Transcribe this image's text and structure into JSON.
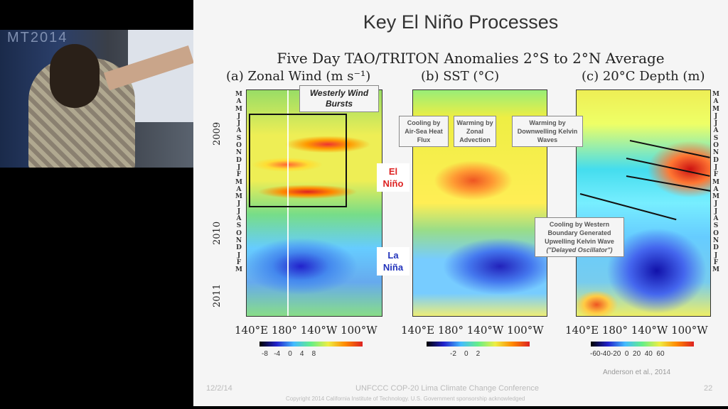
{
  "video": {
    "logo_fragment": "MT2014"
  },
  "slide": {
    "title": "Key El Niño Processes",
    "subtitle": "Five Day TAO/TRITON Anomalies  2°S to 2°N Average",
    "panels": [
      {
        "title": "(a) Zonal Wind (m s⁻¹)",
        "colorbar_ticks": "-8   -4    0    4    8"
      },
      {
        "title": "(b) SST (°C)",
        "colorbar_ticks": "-2    0    2"
      },
      {
        "title": "(c) 20°C Depth (m)",
        "colorbar_ticks": "-60-40-20  0  20  40  60"
      }
    ],
    "x_ticks": "140°E  180°  140°W 100°W",
    "months": [
      "M",
      "A",
      "M",
      "J",
      "J",
      "A",
      "S",
      "O",
      "N",
      "D",
      "J",
      "F",
      "M",
      "A",
      "M",
      "J",
      "J",
      "A",
      "S",
      "O",
      "N",
      "D",
      "J",
      "F",
      "M"
    ],
    "years": [
      "2009",
      "2010",
      "2011"
    ],
    "callouts": {
      "westerly": "Westerly Wind Bursts",
      "el_nino": "El Niño",
      "la_nina": "La Niña",
      "cooling_airsea": "Cooling by Air-Sea Heat Flux",
      "warming_zonal": "Warming by Zonal Advection",
      "warming_kelvin": "Warming by Downwelling Kelvin Waves",
      "cooling_western": "Cooling by Western Boundary Generated Upwelling Kelvin Wave",
      "delayed": "(\"Delayed Oscillator\")"
    },
    "citation": "Anderson et al., 2014",
    "footer": {
      "date": "12/2/14",
      "conference": "UNFCCC COP-20 Lima Climate Change Conference",
      "page": "22",
      "copyright": "Copyright 2014 California Institute of Technology. U.S. Government sponsorship acknowledged"
    }
  }
}
